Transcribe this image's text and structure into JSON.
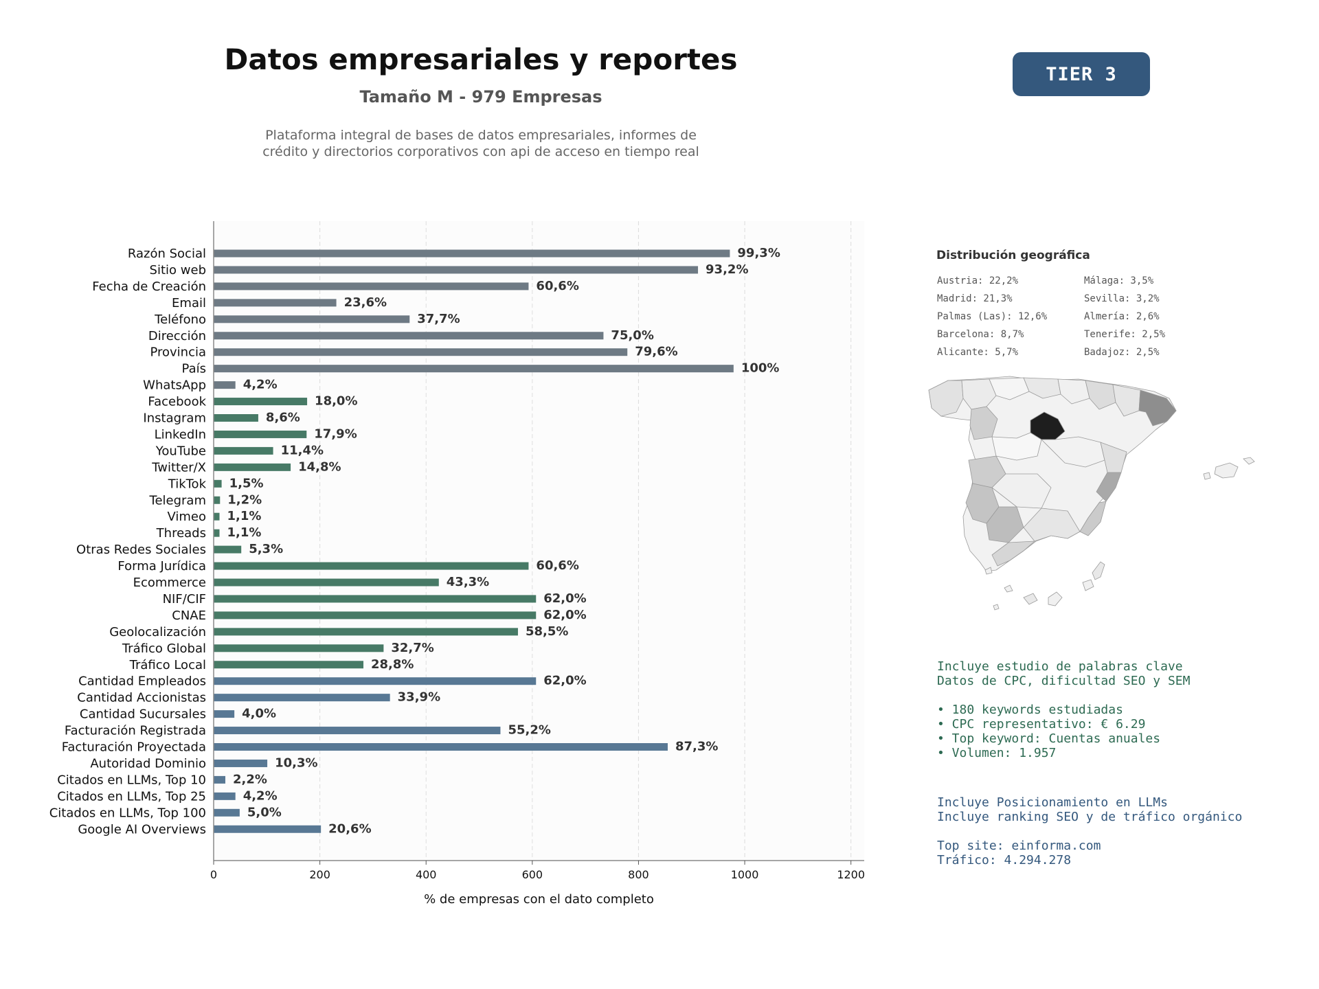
{
  "header": {
    "title": "Datos empresariales y reportes",
    "subtitle": "Tamaño M - 979 Empresas",
    "description_line1": "Plataforma integral de bases de datos empresariales, informes de",
    "description_line2": "crédito y directorios corporativos con api de acceso en tiempo real",
    "tier_badge": "TIER 3"
  },
  "colors": {
    "gray": "#6e7a84",
    "green": "#477a66",
    "blue": "#587894",
    "tier": "#34587d"
  },
  "chart_data": {
    "type": "bar",
    "orientation": "horizontal",
    "xlabel": "% de empresas con el dato completo",
    "xlim": [
      0,
      1225
    ],
    "xticks": [
      0,
      200,
      400,
      600,
      800,
      1000,
      1200
    ],
    "grid": "vertical dashed",
    "categories": [
      "Razón Social",
      "Sitio web",
      "Fecha de Creación",
      "Email",
      "Teléfono",
      "Dirección",
      "Provincia",
      "País",
      "WhatsApp",
      "Facebook",
      "Instagram",
      "LinkedIn",
      "YouTube",
      "Twitter/X",
      "TikTok",
      "Telegram",
      "Vimeo",
      "Threads",
      "Otras Redes Sociales",
      "Forma Jurídica",
      "Ecommerce",
      "NIF/CIF",
      "CNAE",
      "Geolocalización",
      "Tráfico Global",
      "Tráfico Local",
      "Cantidad Empleados",
      "Cantidad Accionistas",
      "Cantidad Sucursales",
      "Facturación Registrada",
      "Facturación Proyectada",
      "Autoridad Dominio",
      "Citados en LLMs, Top 10",
      "Citados en LLMs, Top 25",
      "Citados en LLMs, Top 100",
      "Google AI Overviews"
    ],
    "values": [
      972,
      912,
      593,
      231,
      369,
      734,
      779,
      979,
      41,
      176,
      84,
      175,
      112,
      145,
      15,
      12,
      11,
      11,
      52,
      593,
      424,
      607,
      607,
      573,
      320,
      282,
      607,
      332,
      39,
      540,
      855,
      101,
      22,
      41,
      49,
      202
    ],
    "labels": [
      "99,3%",
      "93,2%",
      "60,6%",
      "23,6%",
      "37,7%",
      "75,0%",
      "79,6%",
      "100%",
      "4,2%",
      "18,0%",
      "8,6%",
      "17,9%",
      "11,4%",
      "14,8%",
      "1,5%",
      "1,2%",
      "1,1%",
      "1,1%",
      "5,3%",
      "60,6%",
      "43,3%",
      "62,0%",
      "62,0%",
      "58,5%",
      "32,7%",
      "28,8%",
      "62,0%",
      "33,9%",
      "4,0%",
      "55,2%",
      "87,3%",
      "10,3%",
      "2,2%",
      "4,2%",
      "5,0%",
      "20,6%"
    ],
    "groups": [
      "gray",
      "gray",
      "gray",
      "gray",
      "gray",
      "gray",
      "gray",
      "gray",
      "gray",
      "green",
      "green",
      "green",
      "green",
      "green",
      "green",
      "green",
      "green",
      "green",
      "green",
      "green",
      "green",
      "green",
      "green",
      "green",
      "green",
      "green",
      "blue",
      "blue",
      "blue",
      "blue",
      "blue",
      "blue",
      "blue",
      "blue",
      "blue",
      "blue"
    ]
  },
  "geo": {
    "title": "Distribución geográfica",
    "col1": [
      "Austria: 22,2%",
      "Madrid: 21,3%",
      "Palmas (Las): 12,6%",
      "Barcelona: 8,7%",
      "Alicante: 5,7%"
    ],
    "col2": [
      "Málaga: 3,5%",
      "Sevilla: 3,2%",
      "Almería: 2,6%",
      "Tenerife: 2,5%",
      "Badajoz: 2,5%"
    ]
  },
  "keywords": {
    "line1": "Incluye estudio de palabras clave",
    "line2": "Datos de CPC, dificultad SEO y SEM",
    "bullet1": "• 180 keywords estudiadas",
    "bullet2": "• CPC representativo: € 6.29",
    "bullet3": "• Top keyword: Cuentas anuales",
    "bullet4": "• Volumen: 1.957"
  },
  "llm": {
    "line1": "Incluye Posicionamiento en LLMs",
    "line2": "Incluye ranking SEO y de tráfico orgánico",
    "top_site": "Top site: einforma.com",
    "traffic": "Tráfico: 4.294.278"
  }
}
